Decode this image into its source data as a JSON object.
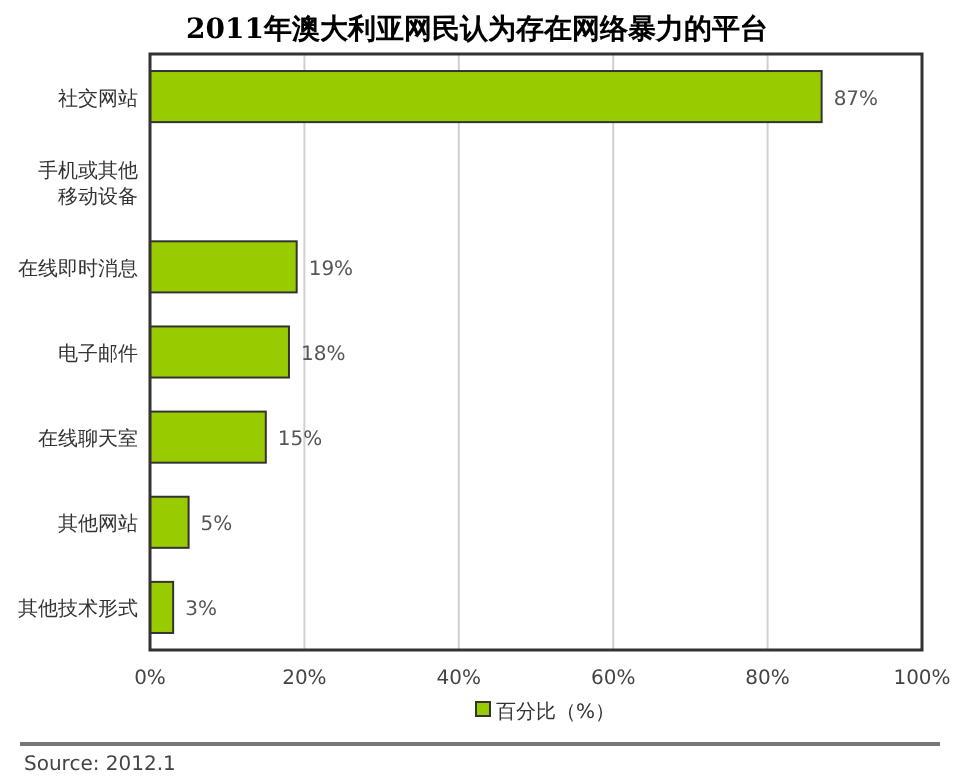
{
  "chart_data": {
    "type": "bar",
    "orientation": "horizontal",
    "title": "2011年澳大利亚网民认为存在网络暴力的平台",
    "categories": [
      "社交网站",
      "手机或其他移动设备",
      "在线即时消息",
      "电子邮件",
      "在线聊天室",
      "其他网站",
      "其他技术形式"
    ],
    "series": [
      {
        "name": "百分比（%）",
        "color": "#99cc00",
        "values": [
          87,
          null,
          19,
          18,
          15,
          5,
          3
        ],
        "value_labels": [
          "87%",
          null,
          "19%",
          "18%",
          "15%",
          "5%",
          "3%"
        ]
      }
    ],
    "xlim": [
      0,
      100
    ],
    "xticks": [
      {
        "value": 0,
        "label": "0%"
      },
      {
        "value": 20,
        "label": "20%"
      },
      {
        "value": 40,
        "label": "40%"
      },
      {
        "value": 60,
        "label": "60%"
      },
      {
        "value": 80,
        "label": "80%"
      },
      {
        "value": 100,
        "label": "100%"
      }
    ],
    "grid": "x",
    "legend": "bottom",
    "annotations": [
      "Source: 2012.1"
    ]
  }
}
